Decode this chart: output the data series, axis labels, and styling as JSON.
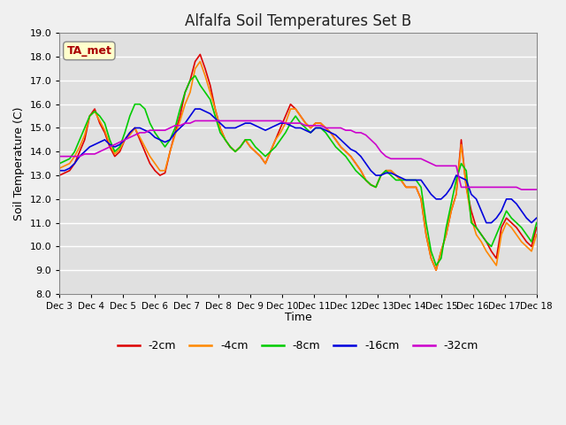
{
  "title": "Alfalfa Soil Temperatures Set B",
  "xlabel": "Time",
  "ylabel": "Soil Temperature (C)",
  "annotation": "TA_met",
  "ylim": [
    8.0,
    19.0
  ],
  "yticks": [
    8.0,
    9.0,
    10.0,
    11.0,
    12.0,
    13.0,
    14.0,
    15.0,
    16.0,
    17.0,
    18.0,
    19.0
  ],
  "xtick_labels": [
    "Dec 3",
    "Dec 4",
    "Dec 5",
    "Dec 6",
    "Dec 7",
    "Dec 8",
    "Dec 9",
    "Dec 10",
    "Dec 11",
    "Dec 12",
    "Dec 13",
    "Dec 14",
    "Dec 15",
    "Dec 16",
    "Dec 17",
    "Dec 18"
  ],
  "series_colors": [
    "#dd0000",
    "#ff8800",
    "#00cc00",
    "#0000dd",
    "#cc00cc"
  ],
  "series_labels": [
    "-2cm",
    "-4cm",
    "-8cm",
    "-16cm",
    "-32cm"
  ],
  "bg_color": "#e0e0e0",
  "title_color": "#222222",
  "annotation_bg": "#ffffcc",
  "annotation_fg": "#aa0000",
  "x": [
    0,
    0.5,
    1,
    1.5,
    2,
    2.5,
    3,
    3.5,
    4,
    4.5,
    5,
    5.5,
    6,
    6.5,
    7,
    7.5,
    8,
    8.5,
    9,
    9.5,
    10,
    10.5,
    11,
    11.5,
    12,
    12.5,
    13,
    13.5,
    14,
    14.5,
    15,
    15.5,
    16,
    16.5,
    17,
    17.5,
    18,
    18.5,
    19,
    19.5,
    20,
    20.5,
    21,
    21.5,
    22,
    22.5,
    23,
    23.5,
    24,
    24.5,
    25,
    25.5,
    26,
    26.5,
    27,
    27.5,
    28,
    28.5,
    29,
    29.5,
    30,
    30.5,
    31,
    31.5,
    32,
    32.5,
    33,
    33.5,
    34,
    34.5,
    35,
    35.5,
    36,
    36.5,
    37,
    37.5,
    38,
    38.5,
    39,
    39.5,
    40,
    40.5,
    41,
    41.5,
    42,
    42.5,
    43,
    43.5,
    44,
    44.5,
    45,
    45.5,
    46,
    46.5,
    47,
    47.5
  ],
  "y_2cm": [
    13.0,
    13.1,
    13.2,
    13.5,
    14.0,
    14.5,
    15.5,
    15.8,
    15.2,
    14.8,
    14.2,
    13.8,
    14.0,
    14.5,
    14.8,
    15.0,
    14.5,
    14.0,
    13.5,
    13.2,
    13.0,
    13.1,
    14.0,
    14.8,
    15.5,
    16.5,
    17.0,
    17.8,
    18.1,
    17.5,
    16.8,
    15.8,
    15.0,
    14.5,
    14.2,
    14.0,
    14.2,
    14.5,
    14.2,
    14.0,
    13.8,
    13.5,
    14.0,
    14.5,
    15.0,
    15.5,
    16.0,
    15.8,
    15.5,
    15.2,
    15.0,
    15.2,
    15.2,
    15.0,
    14.8,
    14.5,
    14.2,
    14.0,
    13.8,
    13.5,
    13.2,
    12.8,
    12.6,
    12.5,
    13.0,
    13.2,
    13.2,
    13.0,
    12.8,
    12.5,
    12.5,
    12.5,
    12.0,
    10.5,
    9.5,
    9.0,
    9.8,
    10.5,
    11.5,
    12.2,
    14.5,
    12.5,
    11.5,
    10.8,
    10.5,
    10.2,
    9.8,
    9.5,
    10.8,
    11.2,
    11.0,
    10.8,
    10.5,
    10.2,
    10.0,
    10.8
  ],
  "y_4cm": [
    13.3,
    13.4,
    13.5,
    13.8,
    14.2,
    14.7,
    15.5,
    15.7,
    15.3,
    14.9,
    14.3,
    13.9,
    14.1,
    14.5,
    14.7,
    15.0,
    14.6,
    14.2,
    13.8,
    13.5,
    13.2,
    13.2,
    14.0,
    14.7,
    15.3,
    16.0,
    16.5,
    17.5,
    17.8,
    17.2,
    16.5,
    15.8,
    15.0,
    14.5,
    14.2,
    14.0,
    14.2,
    14.5,
    14.2,
    14.0,
    13.8,
    13.5,
    14.0,
    14.5,
    14.8,
    15.2,
    15.8,
    15.8,
    15.5,
    15.2,
    15.0,
    15.2,
    15.2,
    15.0,
    14.8,
    14.5,
    14.2,
    14.0,
    13.8,
    13.5,
    13.2,
    12.8,
    12.6,
    12.5,
    13.0,
    13.2,
    13.2,
    13.0,
    12.8,
    12.5,
    12.5,
    12.5,
    12.0,
    10.5,
    9.5,
    9.0,
    9.8,
    10.5,
    11.5,
    12.2,
    14.3,
    12.5,
    11.2,
    10.5,
    10.2,
    9.8,
    9.5,
    9.2,
    10.5,
    11.0,
    10.8,
    10.5,
    10.2,
    10.0,
    9.8,
    10.5
  ],
  "y_8cm": [
    13.5,
    13.6,
    13.7,
    14.0,
    14.5,
    15.0,
    15.5,
    15.7,
    15.5,
    15.2,
    14.5,
    14.0,
    14.2,
    14.8,
    15.5,
    16.0,
    16.0,
    15.8,
    15.2,
    14.8,
    14.5,
    14.2,
    14.5,
    15.0,
    15.8,
    16.5,
    17.0,
    17.2,
    16.8,
    16.5,
    16.2,
    15.5,
    14.8,
    14.5,
    14.2,
    14.0,
    14.2,
    14.5,
    14.5,
    14.2,
    14.0,
    13.8,
    14.0,
    14.2,
    14.5,
    14.8,
    15.2,
    15.5,
    15.2,
    15.0,
    14.8,
    15.0,
    15.0,
    14.8,
    14.5,
    14.2,
    14.0,
    13.8,
    13.5,
    13.2,
    13.0,
    12.8,
    12.6,
    12.5,
    13.0,
    13.2,
    13.0,
    12.8,
    12.8,
    12.8,
    12.8,
    12.8,
    12.5,
    11.0,
    9.8,
    9.2,
    9.5,
    10.8,
    11.8,
    12.8,
    13.5,
    13.2,
    11.0,
    10.8,
    10.5,
    10.2,
    10.0,
    10.5,
    11.0,
    11.5,
    11.2,
    11.0,
    10.8,
    10.5,
    10.2,
    11.0
  ],
  "y_16cm": [
    13.2,
    13.2,
    13.3,
    13.5,
    13.8,
    14.0,
    14.2,
    14.3,
    14.4,
    14.5,
    14.3,
    14.2,
    14.3,
    14.5,
    14.8,
    15.0,
    15.0,
    14.9,
    14.8,
    14.6,
    14.5,
    14.4,
    14.5,
    14.8,
    15.0,
    15.2,
    15.5,
    15.8,
    15.8,
    15.7,
    15.6,
    15.4,
    15.2,
    15.0,
    15.0,
    15.0,
    15.1,
    15.2,
    15.2,
    15.1,
    15.0,
    14.9,
    15.0,
    15.1,
    15.2,
    15.2,
    15.1,
    15.0,
    15.0,
    14.9,
    14.8,
    15.0,
    15.0,
    14.9,
    14.8,
    14.7,
    14.5,
    14.3,
    14.1,
    14.0,
    13.8,
    13.5,
    13.2,
    13.0,
    13.0,
    13.1,
    13.1,
    13.0,
    12.9,
    12.8,
    12.8,
    12.8,
    12.8,
    12.5,
    12.2,
    12.0,
    12.0,
    12.2,
    12.5,
    13.0,
    12.9,
    12.8,
    12.2,
    12.0,
    11.5,
    11.0,
    11.0,
    11.2,
    11.5,
    12.0,
    12.0,
    11.8,
    11.5,
    11.2,
    11.0,
    11.2
  ],
  "y_32cm": [
    13.8,
    13.8,
    13.8,
    13.8,
    13.8,
    13.9,
    13.9,
    13.9,
    14.0,
    14.1,
    14.2,
    14.3,
    14.4,
    14.5,
    14.6,
    14.7,
    14.8,
    14.8,
    14.9,
    14.9,
    14.9,
    14.9,
    15.0,
    15.1,
    15.1,
    15.2,
    15.2,
    15.3,
    15.3,
    15.3,
    15.3,
    15.3,
    15.3,
    15.3,
    15.3,
    15.3,
    15.3,
    15.3,
    15.3,
    15.3,
    15.3,
    15.3,
    15.3,
    15.3,
    15.3,
    15.2,
    15.2,
    15.2,
    15.2,
    15.1,
    15.1,
    15.1,
    15.1,
    15.0,
    15.0,
    15.0,
    15.0,
    14.9,
    14.9,
    14.8,
    14.8,
    14.7,
    14.5,
    14.3,
    14.0,
    13.8,
    13.7,
    13.7,
    13.7,
    13.7,
    13.7,
    13.7,
    13.7,
    13.6,
    13.5,
    13.4,
    13.4,
    13.4,
    13.4,
    13.4,
    12.5,
    12.5,
    12.5,
    12.5,
    12.5,
    12.5,
    12.5,
    12.5,
    12.5,
    12.5,
    12.5,
    12.5,
    12.4,
    12.4,
    12.4,
    12.4
  ]
}
